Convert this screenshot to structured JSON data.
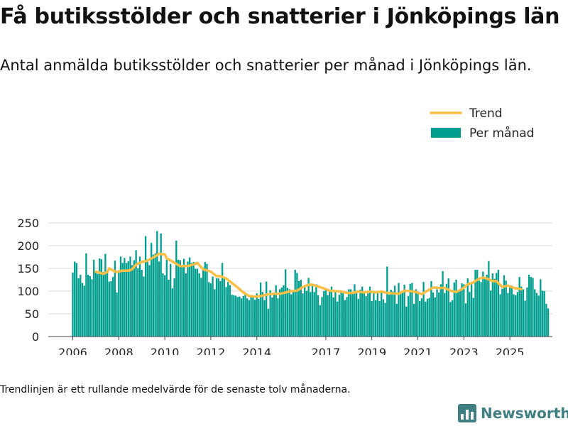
{
  "header": {
    "title": "Få butiksstölder och snatterier i Jönköpings län",
    "subtitle": "Antal anmälda butiksstölder och snatterier per månad i Jönköpings län."
  },
  "footer": {
    "note": "Trendlinjen är ett rullande medelvärde för de senaste tolv månaderna.",
    "brand": "Newsworthy",
    "brand_icon": "bar-chart-logo-icon"
  },
  "colors": {
    "bars": "#009e8e",
    "trend": "#fbbf45",
    "grid": "#dddddd",
    "brand": "#3f7f82"
  },
  "chart_data": {
    "type": "bar",
    "grid": true,
    "legend_position": "top-right",
    "ylim": [
      0,
      250
    ],
    "yticks": [
      0,
      50,
      100,
      150,
      200,
      250
    ],
    "xticks": [
      "2006",
      "2008",
      "2010",
      "2012",
      "2014",
      "2017",
      "2019",
      "2021",
      "2023",
      "2025"
    ],
    "x_start": "2006-01",
    "x_end": "2025-07",
    "legend": [
      {
        "label": "Trend",
        "kind": "line"
      },
      {
        "label": "Per månad",
        "kind": "bar"
      }
    ],
    "series": [
      {
        "name": "Per månad",
        "type": "bar",
        "values": [
          141,
          165,
          162,
          128,
          136,
          118,
          112,
          183,
          136,
          133,
          126,
          169,
          142,
          138,
          172,
          170,
          142,
          182,
          145,
          121,
          122,
          131,
          167,
          97,
          146,
          176,
          162,
          173,
          162,
          166,
          176,
          157,
          168,
          190,
          150,
          176,
          147,
          132,
          221,
          170,
          157,
          206,
          180,
          183,
          232,
          165,
          227,
          139,
          135,
          169,
          125,
          160,
          106,
          128,
          211,
          169,
          168,
          153,
          171,
          139,
          165,
          174,
          162,
          164,
          149,
          149,
          139,
          129,
          152,
          164,
          160,
          120,
          117,
          132,
          104,
          128,
          128,
          122,
          162,
          128,
          109,
          120,
          113,
          92,
          91,
          90,
          87,
          88,
          84,
          89,
          95,
          84,
          80,
          91,
          90,
          81,
          95,
          83,
          119,
          98,
          80,
          121,
          61,
          102,
          86,
          96,
          113,
          84,
          104,
          108,
          113,
          148,
          107,
          104,
          93,
          98,
          147,
          140,
          122,
          125,
          95,
          111,
          100,
          129,
          98,
          113,
          98,
          115,
          91,
          69,
          87,
          100,
          104,
          91,
          99,
          110,
          86,
          100,
          77,
          92,
          100,
          95,
          80,
          87,
          104,
          104,
          96,
          115,
          101,
          83,
          103,
          110,
          96,
          89,
          95,
          110,
          78,
          96,
          80,
          97,
          78,
          101,
          82,
          74,
          154,
          92,
          103,
          99,
          112,
          72,
          118,
          95,
          97,
          114,
          66,
          89,
          116,
          118,
          72,
          104,
          99,
          78,
          84,
          120,
          77,
          83,
          85,
          122,
          97,
          86,
          104,
          97,
          115,
          144,
          96,
          116,
          128,
          76,
          80,
          119,
          125,
          102,
          104,
          117,
          115,
          73,
          128,
          98,
          117,
          85,
          147,
          147,
          123,
          120,
          143,
          127,
          136,
          166,
          101,
          139,
          127,
          140,
          147,
          93,
          105,
          135,
          123,
          96,
          111,
          112,
          93,
          91,
          98,
          131,
          110,
          104,
          79,
          108,
          136,
          131,
          129,
          104,
          96,
          90,
          126,
          101,
          100,
          72,
          62
        ]
      },
      {
        "name": "Trend",
        "type": "line",
        "x": [
          "2007-01",
          "2007-05",
          "2007-07",
          "2007-08",
          "2007-10",
          "2007-12",
          "2008-03",
          "2008-06",
          "2008-08",
          "2008-10",
          "2009-01",
          "2009-04",
          "2009-07",
          "2009-10",
          "2010-01",
          "2010-02",
          "2010-03",
          "2010-05",
          "2010-07",
          "2010-09",
          "2011-01",
          "2011-05",
          "2011-06",
          "2011-09",
          "2012-01",
          "2012-04",
          "2012-06",
          "2012-09",
          "2012-12",
          "2013-03",
          "2013-06",
          "2013-09",
          "2013-12",
          "2014-03",
          "2014-07",
          "2014-10",
          "2015-01",
          "2015-04",
          "2015-07",
          "2015-10",
          "2016-01",
          "2016-04",
          "2016-06",
          "2016-09",
          "2016-12",
          "2017-03",
          "2017-06",
          "2017-09",
          "2017-12",
          "2018-03",
          "2018-06",
          "2018-09",
          "2018-12",
          "2019-03",
          "2019-06",
          "2019-09",
          "2019-12",
          "2020-03",
          "2020-06",
          "2020-09",
          "2020-12",
          "2021-03",
          "2021-06",
          "2021-09",
          "2021-12",
          "2022-03",
          "2022-06",
          "2022-09",
          "2022-12",
          "2023-03",
          "2023-06",
          "2023-08",
          "2023-10",
          "2023-12",
          "2024-02",
          "2024-04",
          "2024-06",
          "2024-09",
          "2024-12",
          "2025-03",
          "2025-07"
        ],
        "y": [
          143,
          138,
          142,
          150,
          145,
          142,
          145,
          145,
          148,
          158,
          164,
          167,
          174,
          182,
          181,
          172,
          170,
          165,
          160,
          155,
          155,
          160,
          162,
          148,
          143,
          133,
          133,
          128,
          118,
          108,
          97,
          89,
          88,
          89,
          93,
          94,
          94,
          97,
          100,
          101,
          109,
          114,
          114,
          110,
          106,
          101,
          100,
          99,
          96,
          96,
          99,
          97,
          99,
          97,
          99,
          96,
          95,
          94,
          101,
          100,
          98,
          93,
          101,
          108,
          107,
          107,
          101,
          98,
          104,
          115,
          119,
          125,
          129,
          129,
          126,
          122,
          122,
          109,
          112,
          107,
          104
        ]
      }
    ]
  }
}
